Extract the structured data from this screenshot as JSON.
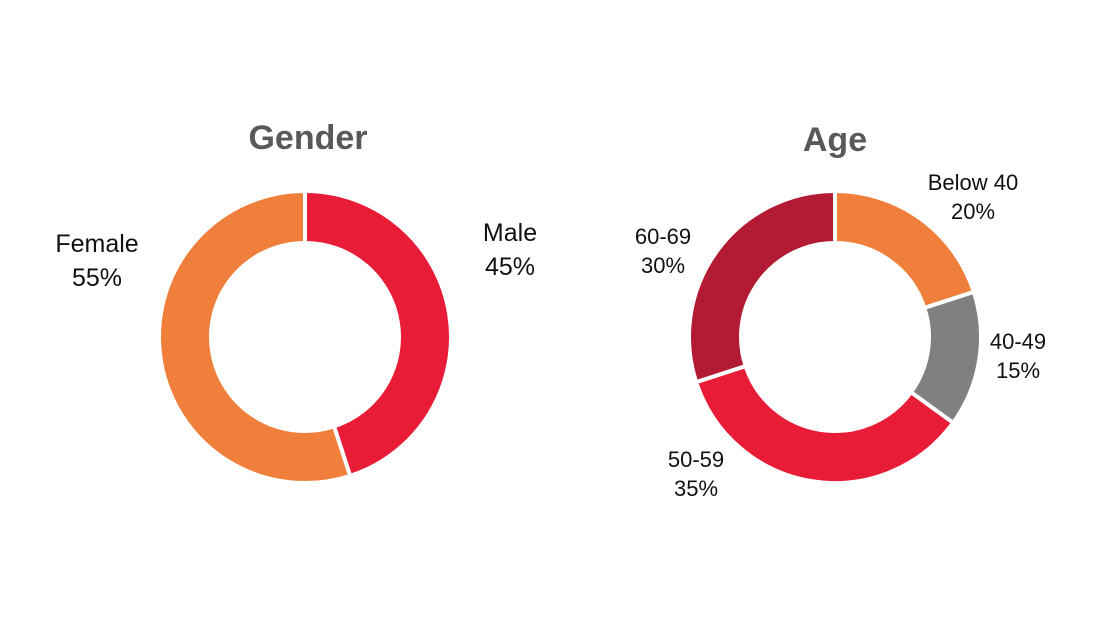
{
  "chart_data": [
    {
      "type": "pie",
      "title": "Gender",
      "donut": true,
      "slices": [
        {
          "label": "Male",
          "value": 45,
          "value_label": "45%",
          "color": "#e81c37"
        },
        {
          "label": "Female",
          "value": 55,
          "value_label": "55%",
          "color": "#ef7f3a"
        }
      ]
    },
    {
      "type": "pie",
      "title": "Age",
      "donut": true,
      "slices": [
        {
          "label": "Below 40",
          "value": 20,
          "value_label": "20%",
          "color": "#ef7f3a"
        },
        {
          "label": "40-49",
          "value": 15,
          "value_label": "15%",
          "color": "#808080"
        },
        {
          "label": "50-59",
          "value": 35,
          "value_label": "35%",
          "color": "#e81c37"
        },
        {
          "label": "60-69",
          "value": 30,
          "value_label": "30%",
          "color": "#b31b34"
        }
      ]
    }
  ]
}
